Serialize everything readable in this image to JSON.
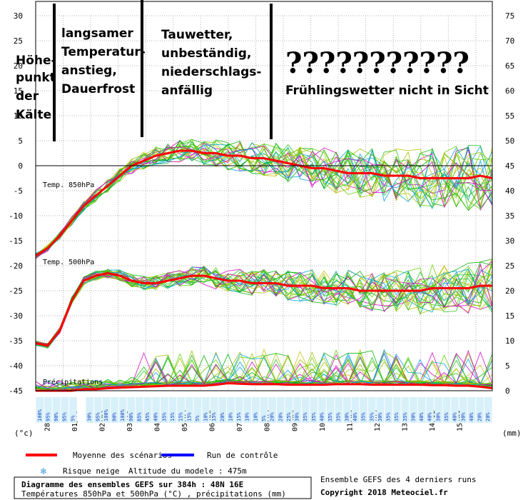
{
  "chart_data": {
    "type": "line",
    "left_axis": {
      "unit_label": "(°c)",
      "ylim": [
        -45,
        30
      ],
      "ticks": [
        30,
        25,
        20,
        15,
        10,
        5,
        0,
        -5,
        -10,
        -15,
        -20,
        -25,
        -30,
        -35,
        -40,
        -45
      ]
    },
    "right_axis": {
      "unit_label": "(mm)",
      "ylim": [
        0,
        75
      ],
      "ticks": [
        75,
        70,
        65,
        60,
        55,
        50,
        45,
        40,
        35,
        30,
        25,
        20,
        15,
        10,
        5,
        0
      ]
    },
    "x_dates": [
      "28/02",
      "01/03",
      "02/03",
      "03/03",
      "04/03",
      "05/03",
      "06/03",
      "07/03",
      "08/03",
      "09/03",
      "10/03",
      "11/03",
      "12/03",
      "13/03",
      "14/03",
      "15/03"
    ],
    "in_chart_labels": {
      "t850": "Temp. 850hPa",
      "t500": "Temp. 500hPa",
      "precip": "Précipitations"
    },
    "snow_risk_pct": [
      "100%",
      "95%",
      "90%",
      "95%",
      "5%",
      "",
      "30%",
      "95%",
      "100%",
      "90%",
      "100%",
      "90%",
      "85%",
      "45%",
      "40%",
      "35%",
      "15%",
      "15%",
      "15%",
      "5%",
      "10%",
      "15%",
      "20%",
      "10%",
      "15%",
      "10%",
      "10%",
      "5%",
      "20%",
      "20%",
      "25%",
      "30%",
      "35%",
      "35%",
      "40%",
      "35%",
      "35%",
      "30%",
      "40%",
      "35%",
      "35%",
      "30%",
      "35%",
      "35%",
      "35%",
      "30%",
      "40%",
      "40%",
      "30%",
      "35%",
      "40%",
      "30%",
      "40%",
      "20%",
      "20%"
    ],
    "series": [
      {
        "name": "Moyenne des scénarios",
        "color": "#ff0000",
        "t850_mean": [
          -18,
          -16.5,
          -14,
          -11,
          -8,
          -6,
          -4,
          -2,
          0,
          1,
          2,
          2.5,
          3,
          3,
          2.5,
          2.5,
          2,
          2,
          1.5,
          1.5,
          1,
          0.5,
          0,
          -0.5,
          -0.5,
          -1,
          -1.5,
          -1.5,
          -1.5,
          -2,
          -2,
          -2,
          -2.5,
          -2.5,
          -2.5,
          -2.5,
          -2.5,
          -2,
          -2.5
        ],
        "t500_mean": [
          -35.5,
          -36,
          -33,
          -27,
          -23,
          -22,
          -21.5,
          -22,
          -23,
          -23.5,
          -23.5,
          -23,
          -22.5,
          -22,
          -22,
          -22.5,
          -23,
          -23,
          -23.5,
          -23.5,
          -23.5,
          -24,
          -24,
          -24,
          -24.5,
          -24.5,
          -24.5,
          -25,
          -25,
          -25,
          -25,
          -25,
          -25,
          -24.5,
          -24.5,
          -24.5,
          -24.5,
          -24,
          -24
        ],
        "precip_mean": [
          0,
          0,
          0,
          0,
          0.3,
          0.3,
          0.5,
          0.6,
          0.7,
          0.8,
          0.9,
          1,
          1,
          1,
          1,
          1.2,
          1.5,
          1.4,
          1.3,
          1.3,
          1.3,
          1.2,
          1.2,
          1.2,
          1.2,
          1.3,
          1.3,
          1.3,
          1.2,
          1.2,
          1.2,
          1.2,
          1.2,
          1.1,
          1.1,
          1,
          1,
          0.8,
          0.5
        ]
      },
      {
        "name": "Run de contrôle",
        "color": "#0000ff"
      }
    ],
    "legend": {
      "snow": "Risque neige",
      "altitude": "Altitude du modele : 475m",
      "placement": "bottom"
    },
    "footer": {
      "title": "Diagramme des ensembles GEFS sur 384h : 48N 16E",
      "subtitle": "Températures 850hPa et 500hPa (°C) , précipitations (mm)",
      "ensemble": "Ensemble GEFS des 4 derniers runs",
      "copyright": "Copyright 2018 Meteociel.fr"
    }
  },
  "annotations": {
    "a1": [
      "Höhe-",
      "punkt",
      "der",
      "Kälte"
    ],
    "a2": [
      "langsamer",
      "Temperatur-",
      "anstieg,",
      "Dauerfrost"
    ],
    "a3": [
      "Tauwetter,",
      "unbeständig,",
      "niederschlags-",
      "anfällig"
    ],
    "a4_q": "???????????",
    "a4": "Frühlingswetter nicht in Sicht"
  },
  "colors": {
    "mean": "#ff0000",
    "control": "#0000ff",
    "members": [
      "#00b000",
      "#20c020",
      "#a0c000",
      "#d000c0",
      "#00a0e0",
      "#60d000",
      "#c0c000"
    ]
  }
}
